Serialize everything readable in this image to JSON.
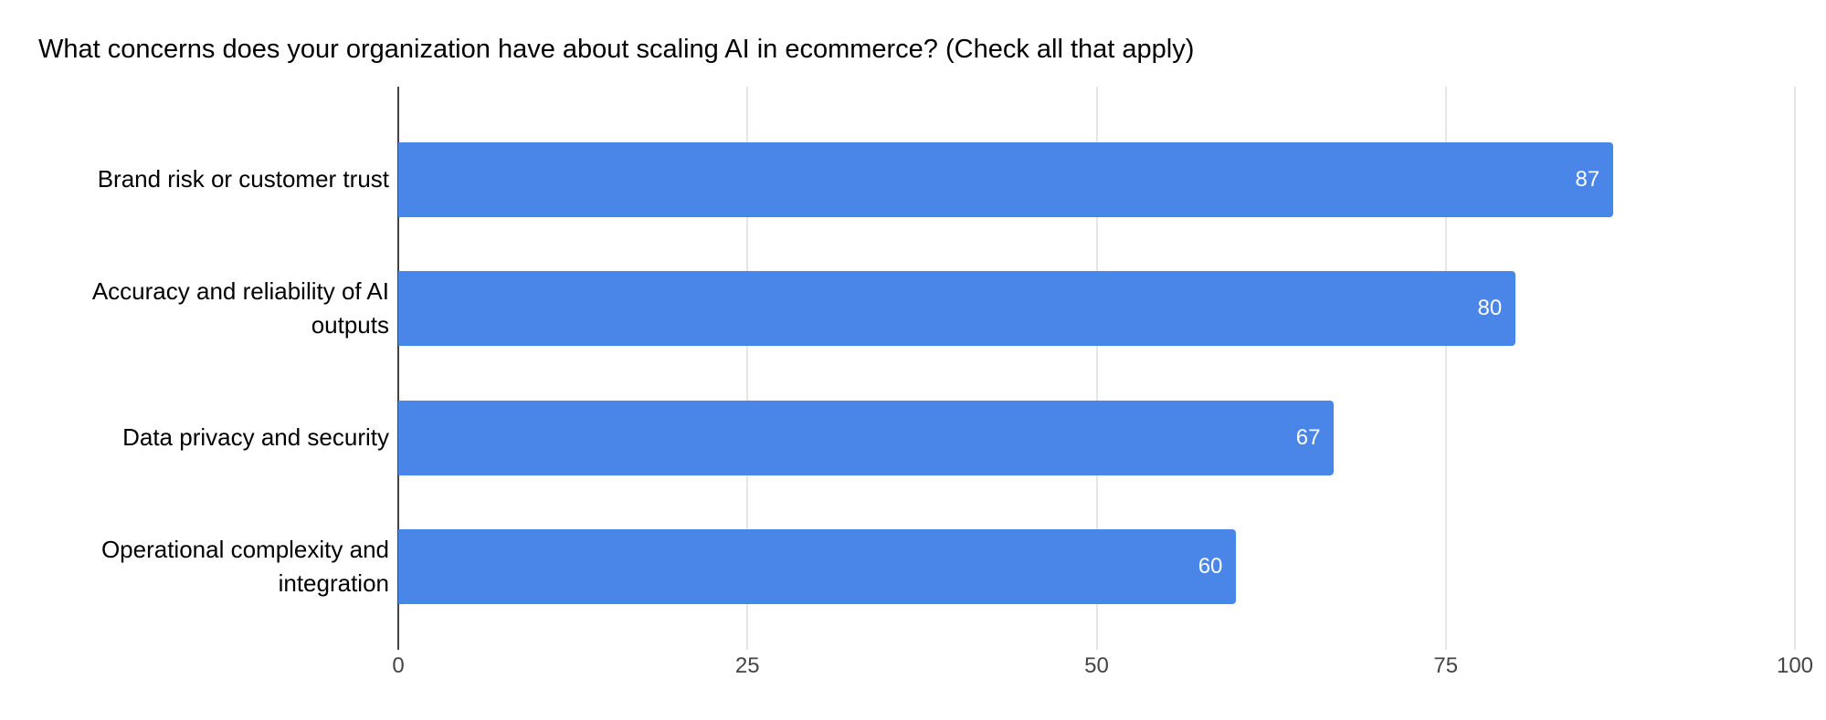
{
  "chart_data": {
    "type": "bar",
    "orientation": "horizontal",
    "title": "What concerns does your organization have about scaling AI in ecommerce? (Check all that apply)",
    "categories": [
      "Brand risk or customer trust",
      "Accuracy and reliability of AI outputs",
      "Data privacy and security",
      "Operational complexity and integration"
    ],
    "values": [
      87,
      80,
      67,
      60
    ],
    "value_labels": [
      "87",
      "80",
      "67",
      "60"
    ],
    "xlabel": "",
    "ylabel": "",
    "xlim": [
      0,
      100
    ],
    "xticks": [
      0,
      25,
      50,
      75,
      100
    ],
    "xtick_labels": [
      "0",
      "25",
      "50",
      "75",
      "100"
    ],
    "grid": "vertical-gridlines-on",
    "legend": "none",
    "value_labels_position": "inside-bar-end",
    "colors": {
      "bar": "#4a86e8",
      "value_label": "#ffffff",
      "axis_line": "#424242",
      "gridline": "#e6e6e6",
      "tick_label": "#444444",
      "title": "#000000",
      "category_label": "#000000",
      "background": "#ffffff"
    }
  }
}
